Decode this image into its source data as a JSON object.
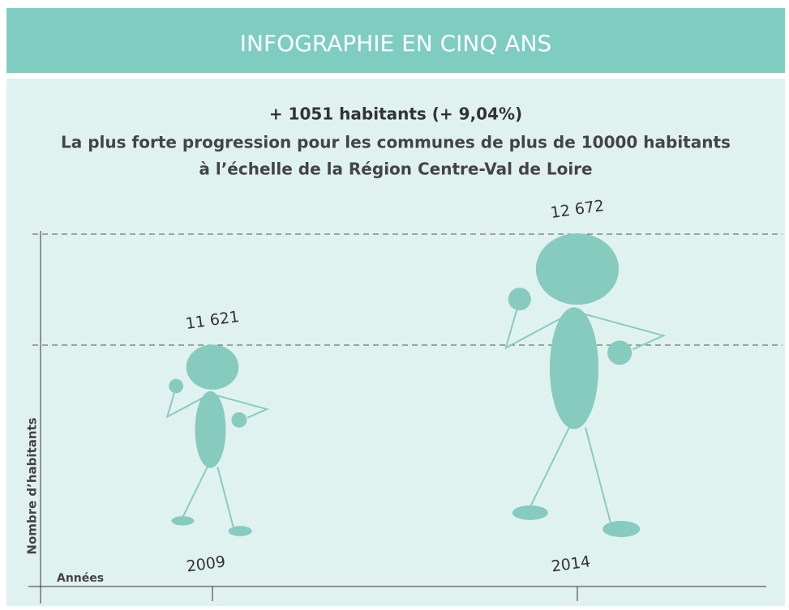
{
  "chart_data": {
    "type": "pictogram",
    "title": "INFOGRAPHIE EN CINQ ANS",
    "subtitle": [
      "+ 1051 habitants (+ 9,04%)",
      "La plus forte progression pour les communes de plus de 10000 habitants",
      "à l’échelle de la Région Centre-Val de Loire"
    ],
    "ylabel": "Nombre d’habitants",
    "xlabel": "Années",
    "categories": [
      "2009",
      "2014"
    ],
    "values": [
      11621,
      12672
    ],
    "value_labels": [
      "11 621",
      "12 672"
    ],
    "color": "#87cbbf"
  }
}
